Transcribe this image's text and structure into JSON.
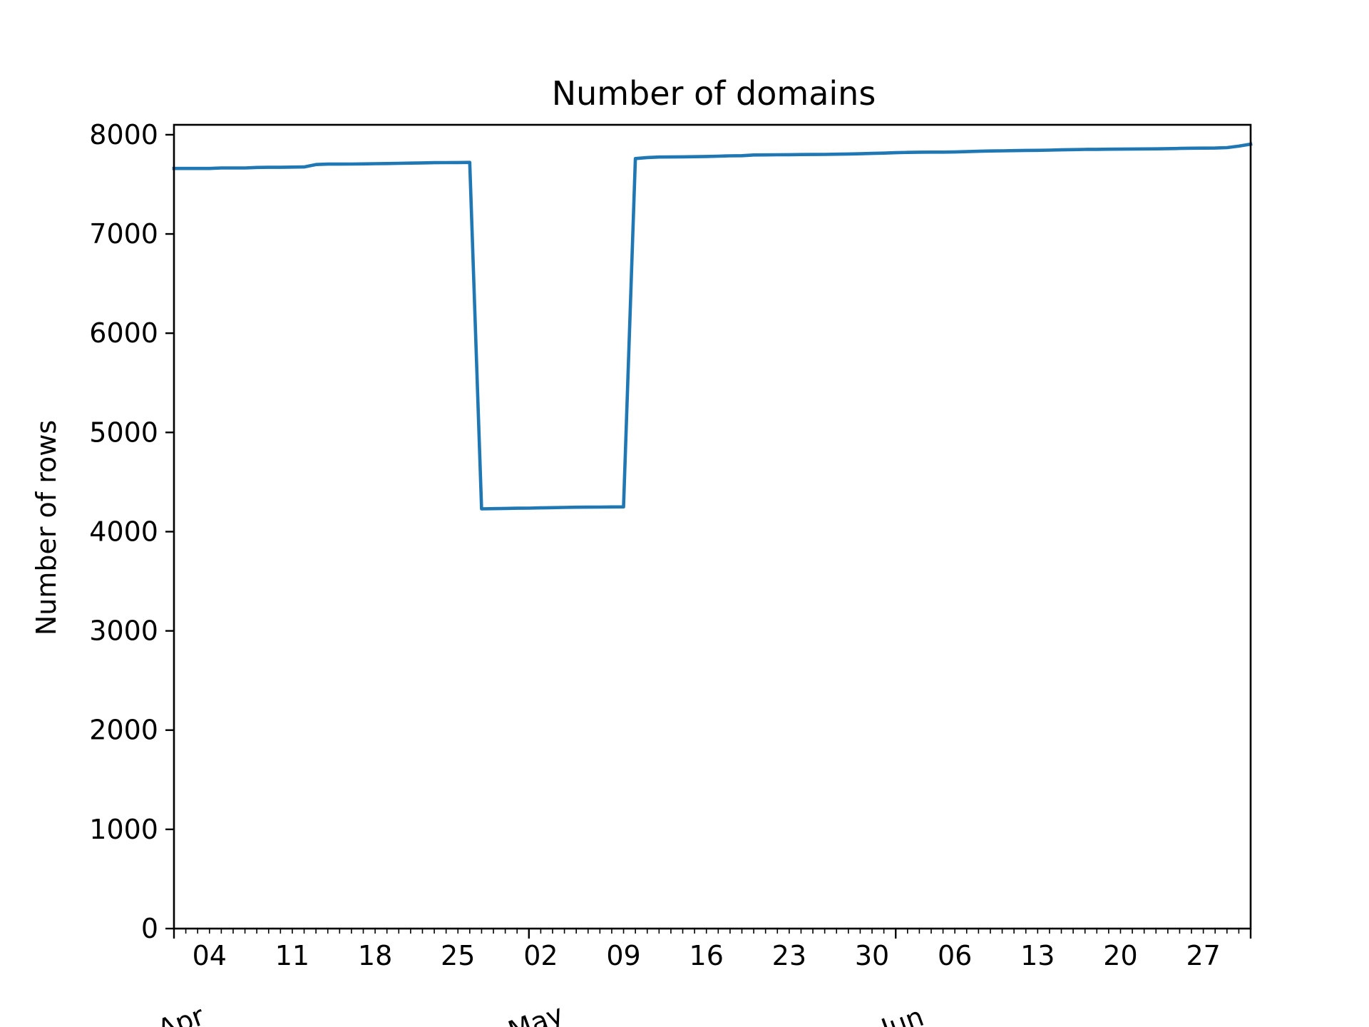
{
  "chart_data": {
    "type": "line",
    "title": "Number of domains",
    "xlabel": "",
    "ylabel": "Number of rows",
    "ylim": [
      0,
      8100
    ],
    "xlim": [
      0,
      91
    ],
    "yticks": [
      0,
      1000,
      2000,
      3000,
      4000,
      5000,
      6000,
      7000,
      8000
    ],
    "ytick_labels": [
      "0",
      "1000",
      "2000",
      "3000",
      "4000",
      "5000",
      "6000",
      "7000",
      "8000"
    ],
    "x_unit": "days since Apr 01",
    "xticks": [
      {
        "day": 3,
        "label": "04"
      },
      {
        "day": 10,
        "label": "11"
      },
      {
        "day": 17,
        "label": "18"
      },
      {
        "day": 24,
        "label": "25"
      },
      {
        "day": 31,
        "label": "02"
      },
      {
        "day": 38,
        "label": "09"
      },
      {
        "day": 45,
        "label": "16"
      },
      {
        "day": 52,
        "label": "23"
      },
      {
        "day": 59,
        "label": "30"
      },
      {
        "day": 66,
        "label": "06"
      },
      {
        "day": 73,
        "label": "13"
      },
      {
        "day": 80,
        "label": "20"
      },
      {
        "day": 87,
        "label": "27"
      }
    ],
    "month_labels": [
      {
        "day": 0,
        "label": "Apr"
      },
      {
        "day": 30,
        "label": "May"
      },
      {
        "day": 61,
        "label": "Jun"
      }
    ],
    "month_boundaries": [
      0,
      30,
      61,
      91
    ],
    "grid": false,
    "series": [
      {
        "name": "Number of domains",
        "color": "#1f77b4",
        "x": [
          0,
          1,
          2,
          3,
          4,
          5,
          6,
          7,
          8,
          9,
          10,
          11,
          12,
          13,
          14,
          15,
          16,
          17,
          18,
          19,
          20,
          21,
          22,
          23,
          24,
          25,
          26,
          27,
          28,
          29,
          30,
          31,
          32,
          33,
          34,
          35,
          36,
          37,
          38,
          39,
          40,
          41,
          42,
          43,
          44,
          45,
          46,
          47,
          48,
          49,
          50,
          51,
          52,
          53,
          54,
          55,
          56,
          57,
          58,
          59,
          60,
          61,
          62,
          63,
          64,
          65,
          66,
          67,
          68,
          69,
          70,
          71,
          72,
          73,
          74,
          75,
          76,
          77,
          78,
          79,
          80,
          81,
          82,
          83,
          84,
          85,
          86,
          87,
          88,
          89,
          90,
          91
        ],
        "values": [
          7660,
          7660,
          7660,
          7660,
          7665,
          7665,
          7665,
          7670,
          7672,
          7672,
          7674,
          7675,
          7700,
          7704,
          7704,
          7705,
          7706,
          7708,
          7710,
          7712,
          7714,
          7716,
          7718,
          7719,
          7720,
          7721,
          4230,
          4232,
          4234,
          4236,
          4237,
          4240,
          4242,
          4244,
          4246,
          4247,
          4248,
          4249,
          4250,
          7760,
          7770,
          7775,
          7776,
          7777,
          7779,
          7781,
          7784,
          7787,
          7789,
          7796,
          7797,
          7798,
          7799,
          7800,
          7801,
          7802,
          7804,
          7806,
          7808,
          7812,
          7815,
          7819,
          7822,
          7824,
          7825,
          7825,
          7826,
          7830,
          7833,
          7836,
          7838,
          7840,
          7842,
          7843,
          7845,
          7848,
          7850,
          7852,
          7853,
          7854,
          7855,
          7856,
          7857,
          7858,
          7860,
          7862,
          7864,
          7865,
          7866,
          7870,
          7885,
          7905
        ]
      }
    ]
  }
}
